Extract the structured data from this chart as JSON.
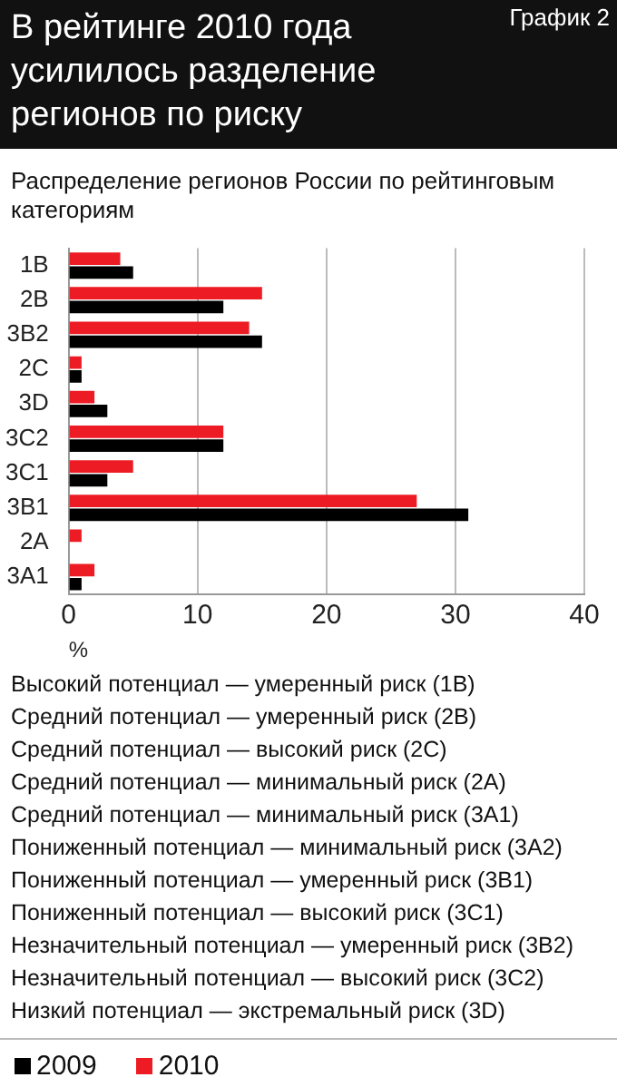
{
  "chart_data": {
    "type": "bar",
    "orientation": "horizontal",
    "title": "В рейтинге 2010 года усилилось разделение  регионов по  риску",
    "subtitle": "Распределение регионов России по рейтинговым категориям",
    "xlabel": "%",
    "categories": [
      "1В",
      "2В",
      "3В2",
      "2С",
      "3D",
      "3С2",
      "3С1",
      "3В1",
      "2А",
      "3А1"
    ],
    "series": [
      {
        "name": "2009",
        "color": "#000000",
        "values": [
          5,
          12,
          15,
          1,
          3,
          12,
          3,
          31,
          0,
          1
        ]
      },
      {
        "name": "2010",
        "color": "#ed1c24",
        "values": [
          4,
          15,
          14,
          1,
          2,
          12,
          5,
          27,
          1,
          2
        ]
      }
    ],
    "xlim": [
      0,
      40
    ],
    "xticks": [
      0,
      10,
      20,
      30,
      40
    ],
    "grid": "x",
    "legend": "bottom",
    "annotations": [
      "График 2",
      "Высокий потенциал — умеренный риск (1В)",
      "Средний потенциал — умеренный риск (2В)",
      "Средний потенциал — высокий риск (2С)",
      "Средний потенциал — минимальный риск (2А)",
      "Средний потенциал — минимальный риск (3А1)",
      "Пониженный потенциал — минимальный риск (3А2)",
      "Пониженный потенциал — умеренный риск (3В1)",
      "Пониженный потенциал — высокий риск (3С1)",
      "Незначительный потенциал — умеренный риск (3В2)",
      "Незначительный потенциал — высокий риск (3С2)",
      "Низкий потенциал — экстремальный риск (3D)"
    ]
  }
}
